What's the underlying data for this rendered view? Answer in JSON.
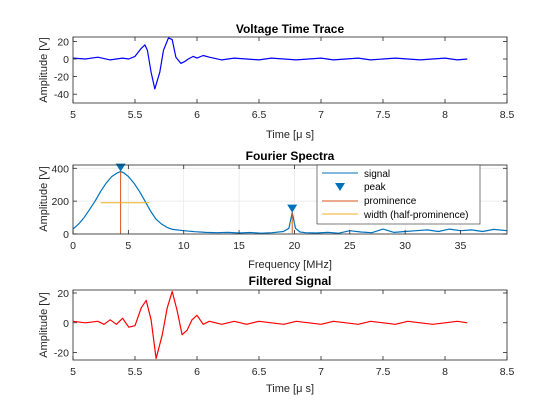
{
  "chart_data": [
    {
      "type": "line",
      "title": "Voltage Time Trace",
      "xlabel": "Time [μ s]",
      "ylabel": "Amplitude [V]",
      "xlim": [
        5,
        8.5
      ],
      "ylim": [
        -50,
        25
      ],
      "xticks": [
        5,
        5.5,
        6,
        6.5,
        7,
        7.5,
        8,
        8.5
      ],
      "xtick_labels": [
        "5",
        "5.5",
        "6",
        "6.5",
        "7",
        "7.5",
        "8",
        "8.5"
      ],
      "yticks": [
        -40,
        -20,
        0,
        20
      ],
      "ytick_labels": [
        "-40",
        "-20",
        "0",
        "20"
      ],
      "grid": false,
      "series": [
        {
          "color": "#0000ff",
          "x": [
            5.0,
            5.1,
            5.2,
            5.3,
            5.4,
            5.45,
            5.5,
            5.55,
            5.58,
            5.6,
            5.63,
            5.66,
            5.7,
            5.73,
            5.77,
            5.8,
            5.83,
            5.87,
            5.9,
            5.93,
            5.97,
            6.0,
            6.05,
            6.1,
            6.2,
            6.3,
            6.4,
            6.5,
            6.6,
            6.7,
            6.8,
            6.9,
            7.0,
            7.1,
            7.2,
            7.3,
            7.4,
            7.5,
            7.6,
            7.7,
            7.8,
            7.9,
            8.0,
            8.1,
            8.18
          ],
          "values": [
            1,
            0,
            2,
            -1,
            1,
            0,
            3,
            12,
            16,
            10,
            -15,
            -34,
            -15,
            10,
            24,
            22,
            2,
            -5,
            -3,
            0,
            3,
            1,
            4,
            2,
            -1,
            1,
            0,
            -1,
            1,
            0,
            -1,
            0,
            1,
            -1,
            0,
            1,
            -1,
            0,
            1,
            0,
            -1,
            0,
            1,
            -1,
            0
          ]
        }
      ]
    },
    {
      "type": "line",
      "title": "Fourier Spectra",
      "xlabel": "Frequency [MHz]",
      "ylabel": "Amplitude [V]",
      "xlim": [
        0,
        39.2
      ],
      "ylim": [
        0,
        420
      ],
      "xticks": [
        0,
        5,
        10,
        15,
        20,
        25,
        30,
        35
      ],
      "xtick_labels": [
        "0",
        "5",
        "10",
        "15",
        "20",
        "25",
        "30",
        "35"
      ],
      "yticks": [
        0,
        200,
        400
      ],
      "ytick_labels": [
        "0",
        "200",
        "400"
      ],
      "grid": true,
      "legend": "top-right",
      "legend_entries": [
        "signal",
        "peak",
        "prominence",
        "width (half-prominence)"
      ],
      "series": [
        {
          "name": "signal",
          "color": "#0072bd",
          "x": [
            0,
            0.5,
            1,
            1.5,
            2,
            2.5,
            3,
            3.5,
            4,
            4.3,
            4.6,
            5,
            5.5,
            6,
            6.5,
            7,
            7.5,
            8,
            8.5,
            9,
            10,
            11,
            12,
            13,
            14,
            15,
            16,
            17,
            18,
            19,
            19.5,
            19.8,
            20.1,
            20.5,
            21,
            22,
            23,
            24,
            25,
            26,
            27,
            28,
            29,
            30,
            31,
            32,
            33,
            34,
            35,
            36,
            37,
            38,
            39.2
          ],
          "values": [
            30,
            60,
            100,
            150,
            200,
            260,
            310,
            350,
            372,
            380,
            372,
            350,
            310,
            260,
            200,
            140,
            90,
            60,
            40,
            28,
            20,
            14,
            10,
            8,
            10,
            6,
            9,
            5,
            8,
            15,
            35,
            130,
            35,
            12,
            8,
            6,
            10,
            5,
            20,
            12,
            8,
            30,
            10,
            15,
            20,
            25,
            15,
            30,
            20,
            25,
            15,
            28,
            20
          ]
        }
      ],
      "peaks": [
        {
          "label": "peak",
          "x": 4.3,
          "y": 380,
          "prominence": 380,
          "width_half_prominence": [
            2.5,
            6.9
          ],
          "width_level": 190,
          "color": "#0072bd"
        },
        {
          "label": "peak",
          "x": 19.8,
          "y": 130,
          "prominence": 125,
          "width_half_prominence": [
            19.6,
            20.0
          ],
          "width_level": 68,
          "color": "#0072bd"
        }
      ],
      "prominence_color": "#d95319",
      "width_color": "#edb120"
    },
    {
      "type": "line",
      "title": "Filtered Signal",
      "xlabel": "Time [μ s]",
      "ylabel": "Amplitude [V]",
      "xlim": [
        5,
        8.5
      ],
      "ylim": [
        -25,
        22
      ],
      "xticks": [
        5,
        5.5,
        6,
        6.5,
        7,
        7.5,
        8,
        8.5
      ],
      "xtick_labels": [
        "5",
        "5.5",
        "6",
        "6.5",
        "7",
        "7.5",
        "8",
        "8.5"
      ],
      "yticks": [
        -20,
        0,
        20
      ],
      "ytick_labels": [
        "-20",
        "0",
        "20"
      ],
      "grid": false,
      "series": [
        {
          "color": "#ff0000",
          "x": [
            5.0,
            5.1,
            5.2,
            5.25,
            5.3,
            5.35,
            5.4,
            5.45,
            5.5,
            5.55,
            5.59,
            5.63,
            5.67,
            5.72,
            5.76,
            5.8,
            5.84,
            5.88,
            5.92,
            5.96,
            6.0,
            6.05,
            6.1,
            6.2,
            6.3,
            6.4,
            6.5,
            6.6,
            6.7,
            6.8,
            6.9,
            7.0,
            7.1,
            7.2,
            7.3,
            7.4,
            7.5,
            7.6,
            7.7,
            7.8,
            7.9,
            8.0,
            8.1,
            8.18
          ],
          "values": [
            1,
            0,
            1,
            -1,
            2,
            -1,
            3,
            -3,
            -2,
            10,
            15,
            2,
            -24,
            -8,
            10,
            21,
            8,
            -8,
            -5,
            2,
            5,
            -1,
            1,
            -1,
            1,
            -1,
            1,
            0,
            -1,
            1,
            0,
            -1,
            1,
            0,
            -1,
            1,
            0,
            -1,
            1,
            0,
            -1,
            0,
            1,
            0
          ]
        }
      ]
    }
  ]
}
